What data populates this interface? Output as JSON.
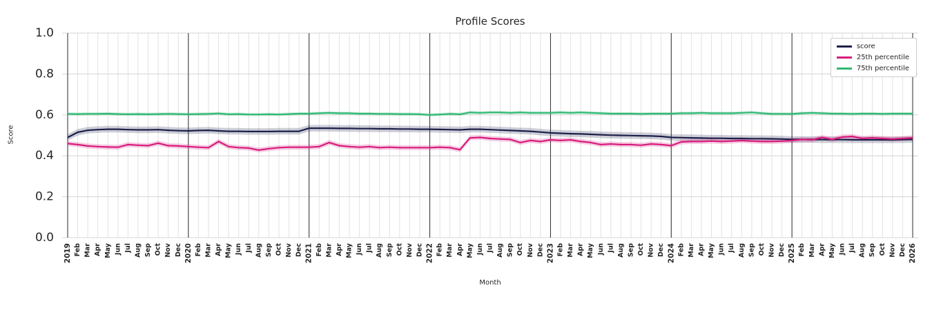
{
  "chart_data": {
    "type": "line",
    "title": "Profile Scores",
    "xlabel": "Month",
    "ylabel": "Score",
    "ylim": [
      0.0,
      1.0
    ],
    "yticks": [
      0.0,
      0.2,
      0.4,
      0.6,
      0.8,
      1.0
    ],
    "grid": true,
    "legend_position": "upper right",
    "x_labels": [
      "2019",
      "Feb",
      "Mar",
      "Apr",
      "May",
      "Jun",
      "Jul",
      "Aug",
      "Sep",
      "Oct",
      "Nov",
      "Dec",
      "2020",
      "Feb",
      "Mar",
      "Apr",
      "May",
      "Jun",
      "Jul",
      "Aug",
      "Sep",
      "Oct",
      "Nov",
      "Dec",
      "2021",
      "Feb",
      "Mar",
      "Apr",
      "May",
      "Jun",
      "Jul",
      "Aug",
      "Sep",
      "Oct",
      "Nov",
      "Dec",
      "2022",
      "Feb",
      "Mar",
      "Apr",
      "May",
      "Jun",
      "Jul",
      "Aug",
      "Sep",
      "Oct",
      "Nov",
      "Dec",
      "2023",
      "Feb",
      "Mar",
      "Apr",
      "May",
      "Jun",
      "Jul",
      "Aug",
      "Sep",
      "Oct",
      "Nov",
      "Dec",
      "2024",
      "Feb",
      "Mar",
      "Apr",
      "May",
      "Jun",
      "Jul",
      "Aug",
      "Sep",
      "Oct",
      "Nov",
      "Dec",
      "2025",
      "Feb",
      "Mar",
      "Apr",
      "May",
      "Jun",
      "Jul",
      "Aug",
      "Sep",
      "Oct",
      "Nov",
      "Dec",
      "2026"
    ],
    "series": [
      {
        "name": "score",
        "color": "#1c1f4a",
        "band_halfwidth": 0.016,
        "values": [
          0.49,
          0.515,
          0.525,
          0.528,
          0.53,
          0.53,
          0.528,
          0.527,
          0.527,
          0.528,
          0.525,
          0.523,
          0.522,
          0.524,
          0.525,
          0.522,
          0.52,
          0.52,
          0.519,
          0.519,
          0.519,
          0.52,
          0.52,
          0.52,
          0.535,
          0.535,
          0.535,
          0.534,
          0.534,
          0.533,
          0.533,
          0.532,
          0.532,
          0.531,
          0.531,
          0.53,
          0.53,
          0.529,
          0.528,
          0.527,
          0.53,
          0.53,
          0.528,
          0.526,
          0.524,
          0.522,
          0.52,
          0.516,
          0.512,
          0.51,
          0.508,
          0.507,
          0.505,
          0.503,
          0.501,
          0.5,
          0.499,
          0.498,
          0.497,
          0.495,
          0.49,
          0.489,
          0.488,
          0.487,
          0.486,
          0.486,
          0.485,
          0.485,
          0.484,
          0.484,
          0.483,
          0.482,
          0.48,
          0.48,
          0.48,
          0.479,
          0.479,
          0.479,
          0.478,
          0.478,
          0.478,
          0.478,
          0.478,
          0.479,
          0.48
        ]
      },
      {
        "name": "25th percentile",
        "color": "#d81b7c",
        "band_halfwidth": 0.012,
        "values": [
          0.46,
          0.455,
          0.448,
          0.445,
          0.443,
          0.442,
          0.455,
          0.452,
          0.45,
          0.462,
          0.45,
          0.448,
          0.445,
          0.442,
          0.44,
          0.47,
          0.445,
          0.44,
          0.438,
          0.428,
          0.435,
          0.44,
          0.442,
          0.442,
          0.442,
          0.445,
          0.465,
          0.45,
          0.445,
          0.442,
          0.445,
          0.44,
          0.442,
          0.44,
          0.44,
          0.44,
          0.44,
          0.442,
          0.44,
          0.43,
          0.488,
          0.49,
          0.485,
          0.482,
          0.48,
          0.465,
          0.475,
          0.47,
          0.478,
          0.475,
          0.478,
          0.47,
          0.465,
          0.455,
          0.458,
          0.455,
          0.455,
          0.452,
          0.458,
          0.455,
          0.45,
          0.468,
          0.47,
          0.47,
          0.472,
          0.47,
          0.472,
          0.475,
          0.472,
          0.47,
          0.47,
          0.472,
          0.475,
          0.48,
          0.478,
          0.49,
          0.48,
          0.492,
          0.495,
          0.485,
          0.488,
          0.485,
          0.482,
          0.485,
          0.488
        ]
      },
      {
        "name": "75th percentile",
        "color": "#2eb873",
        "band_halfwidth": 0.008,
        "values": [
          0.605,
          0.604,
          0.605,
          0.605,
          0.606,
          0.604,
          0.603,
          0.604,
          0.603,
          0.604,
          0.605,
          0.604,
          0.603,
          0.604,
          0.605,
          0.607,
          0.603,
          0.604,
          0.602,
          0.602,
          0.603,
          0.602,
          0.604,
          0.606,
          0.606,
          0.608,
          0.61,
          0.608,
          0.608,
          0.606,
          0.606,
          0.605,
          0.605,
          0.604,
          0.604,
          0.603,
          0.6,
          0.602,
          0.605,
          0.603,
          0.612,
          0.61,
          0.612,
          0.612,
          0.61,
          0.612,
          0.61,
          0.61,
          0.61,
          0.612,
          0.61,
          0.612,
          0.61,
          0.608,
          0.606,
          0.606,
          0.606,
          0.605,
          0.606,
          0.606,
          0.606,
          0.608,
          0.608,
          0.61,
          0.608,
          0.608,
          0.608,
          0.61,
          0.612,
          0.608,
          0.605,
          0.605,
          0.605,
          0.608,
          0.61,
          0.608,
          0.606,
          0.606,
          0.605,
          0.606,
          0.606,
          0.605,
          0.606,
          0.606,
          0.606
        ]
      }
    ],
    "colors": {
      "grid_minor": "#e2e2e2",
      "grid_major": "#d4d4d4",
      "year_line": "#2b2b2b",
      "text": "#262626",
      "legend_border": "#cccccc"
    }
  }
}
